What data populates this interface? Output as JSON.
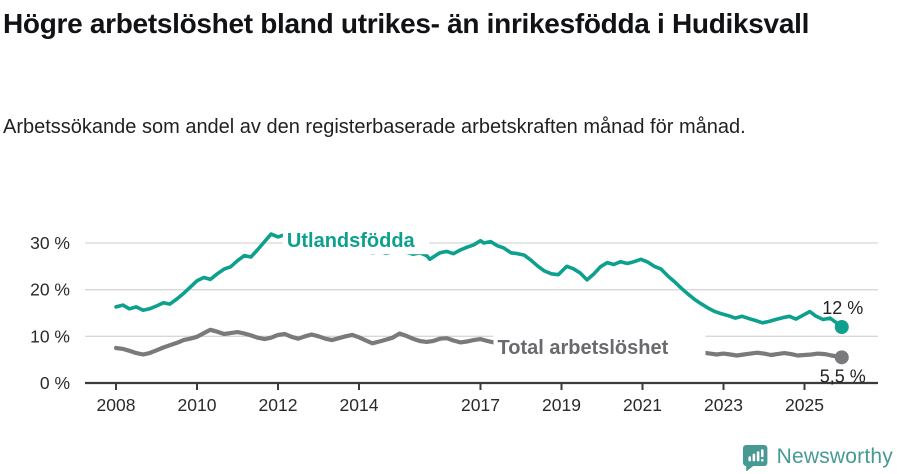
{
  "header": {
    "title": "Högre arbetslöshet bland utrikes- än inrikesfödda i Hudiksvall",
    "subtitle": "Arbetssökande som andel av den registerbaserade arbetskraften månad för månad."
  },
  "footer": {
    "brand": "Newsworthy"
  },
  "colors": {
    "series1": "#0da08d",
    "series2": "#7a7a7c",
    "series2_label": "#69696e",
    "grid": "#d8d8d8",
    "axis": "#3b3b3b",
    "text": "#2a2a2a",
    "title": "#111215",
    "brand": "#469a93"
  },
  "chart_data": {
    "type": "line",
    "title": "Högre arbetslöshet bland utrikes- än inrikesfödda i Hudiksvall",
    "subtitle": "Arbetssökande som andel av den registerbaserade arbetskraften månad för månad.",
    "x_axis": {
      "ticks": [
        2008,
        2010,
        2012,
        2014,
        2017,
        2019,
        2021,
        2023,
        2025
      ],
      "tick_labels": [
        "2008",
        "2010",
        "2012",
        "2014",
        "2017",
        "2019",
        "2021",
        "2023",
        "2025"
      ],
      "range": [
        2007.25,
        2026.8
      ]
    },
    "y_axis": {
      "ticks": [
        0,
        10,
        20,
        30
      ],
      "tick_labels": [
        "0 %",
        "10 %",
        "20 %",
        "30 %"
      ],
      "range": [
        0,
        36
      ],
      "unit": "%"
    },
    "grid": true,
    "legend_position": "inline-labels",
    "series": [
      {
        "name": "Utlandsfödda",
        "color": "#0da08d",
        "end_label": "12 %",
        "end_value": 12,
        "label_at": {
          "x": 2012.22,
          "y": 29.1
        },
        "points": [
          [
            2008.0,
            16.3
          ],
          [
            2008.17,
            16.7
          ],
          [
            2008.33,
            15.9
          ],
          [
            2008.5,
            16.3
          ],
          [
            2008.67,
            15.6
          ],
          [
            2008.83,
            15.9
          ],
          [
            2009.0,
            16.5
          ],
          [
            2009.17,
            17.2
          ],
          [
            2009.33,
            16.9
          ],
          [
            2009.5,
            18.0
          ],
          [
            2009.67,
            19.2
          ],
          [
            2009.83,
            20.5
          ],
          [
            2010.0,
            21.9
          ],
          [
            2010.17,
            22.6
          ],
          [
            2010.33,
            22.2
          ],
          [
            2010.5,
            23.4
          ],
          [
            2010.67,
            24.4
          ],
          [
            2010.83,
            24.9
          ],
          [
            2011.0,
            26.2
          ],
          [
            2011.17,
            27.3
          ],
          [
            2011.33,
            27.0
          ],
          [
            2011.5,
            28.6
          ],
          [
            2011.67,
            30.3
          ],
          [
            2011.83,
            31.9
          ],
          [
            2012.0,
            31.3
          ],
          [
            2012.17,
            31.8
          ],
          [
            2012.33,
            30.7
          ],
          [
            2012.5,
            30.2
          ],
          [
            2012.67,
            29.8
          ],
          [
            2012.83,
            29.4
          ],
          [
            2013.0,
            29.9
          ],
          [
            2013.17,
            29.4
          ],
          [
            2013.33,
            28.9
          ],
          [
            2013.5,
            28.5
          ],
          [
            2013.67,
            28.9
          ],
          [
            2013.83,
            28.4
          ],
          [
            2014.0,
            28.8
          ],
          [
            2014.17,
            28.3
          ],
          [
            2014.33,
            27.9
          ],
          [
            2014.5,
            28.2
          ],
          [
            2014.67,
            27.8
          ],
          [
            2014.83,
            28.1
          ],
          [
            2015.0,
            28.5
          ],
          [
            2015.17,
            28.0
          ],
          [
            2015.33,
            27.6
          ],
          [
            2015.5,
            27.9
          ],
          [
            2015.67,
            27.3
          ],
          [
            2015.75,
            26.5
          ],
          [
            2015.92,
            27.5
          ],
          [
            2016.0,
            27.9
          ],
          [
            2016.17,
            28.2
          ],
          [
            2016.33,
            27.7
          ],
          [
            2016.5,
            28.5
          ],
          [
            2016.67,
            29.1
          ],
          [
            2016.83,
            29.6
          ],
          [
            2017.0,
            30.5
          ],
          [
            2017.08,
            30.0
          ],
          [
            2017.25,
            30.3
          ],
          [
            2017.42,
            29.4
          ],
          [
            2017.58,
            28.9
          ],
          [
            2017.75,
            27.9
          ],
          [
            2017.92,
            27.7
          ],
          [
            2018.08,
            27.4
          ],
          [
            2018.25,
            26.3
          ],
          [
            2018.42,
            25.0
          ],
          [
            2018.58,
            24.0
          ],
          [
            2018.75,
            23.4
          ],
          [
            2018.92,
            23.2
          ],
          [
            2019.0,
            23.9
          ],
          [
            2019.13,
            25.0
          ],
          [
            2019.29,
            24.5
          ],
          [
            2019.46,
            23.6
          ],
          [
            2019.63,
            22.1
          ],
          [
            2019.79,
            23.3
          ],
          [
            2019.96,
            24.9
          ],
          [
            2020.13,
            25.8
          ],
          [
            2020.29,
            25.4
          ],
          [
            2020.46,
            26.0
          ],
          [
            2020.63,
            25.6
          ],
          [
            2020.79,
            26.0
          ],
          [
            2020.96,
            26.5
          ],
          [
            2021.13,
            25.9
          ],
          [
            2021.29,
            25.0
          ],
          [
            2021.46,
            24.4
          ],
          [
            2021.63,
            22.9
          ],
          [
            2021.79,
            21.7
          ],
          [
            2021.96,
            20.3
          ],
          [
            2022.13,
            19.0
          ],
          [
            2022.29,
            17.9
          ],
          [
            2022.46,
            16.9
          ],
          [
            2022.63,
            16.0
          ],
          [
            2022.79,
            15.3
          ],
          [
            2022.96,
            14.8
          ],
          [
            2023.13,
            14.4
          ],
          [
            2023.29,
            13.9
          ],
          [
            2023.46,
            14.3
          ],
          [
            2023.63,
            13.8
          ],
          [
            2023.79,
            13.4
          ],
          [
            2023.96,
            12.9
          ],
          [
            2024.13,
            13.2
          ],
          [
            2024.29,
            13.6
          ],
          [
            2024.46,
            14.0
          ],
          [
            2024.63,
            14.3
          ],
          [
            2024.79,
            13.7
          ],
          [
            2024.96,
            14.5
          ],
          [
            2025.13,
            15.3
          ],
          [
            2025.29,
            14.3
          ],
          [
            2025.46,
            13.6
          ],
          [
            2025.63,
            13.9
          ],
          [
            2025.79,
            12.9
          ],
          [
            2025.92,
            12.0
          ]
        ]
      },
      {
        "name": "Total arbetslöshet",
        "color": "#7a7a7c",
        "end_label": "5,5 %",
        "end_value": 5.5,
        "label_at": {
          "x": 2017.42,
          "y": 6.2
        },
        "points": [
          [
            2008.0,
            7.5
          ],
          [
            2008.17,
            7.3
          ],
          [
            2008.33,
            6.9
          ],
          [
            2008.5,
            6.4
          ],
          [
            2008.67,
            6.1
          ],
          [
            2008.83,
            6.4
          ],
          [
            2009.0,
            7.0
          ],
          [
            2009.17,
            7.6
          ],
          [
            2009.33,
            8.1
          ],
          [
            2009.5,
            8.6
          ],
          [
            2009.67,
            9.2
          ],
          [
            2009.83,
            9.5
          ],
          [
            2010.0,
            9.9
          ],
          [
            2010.17,
            10.7
          ],
          [
            2010.33,
            11.4
          ],
          [
            2010.5,
            11.0
          ],
          [
            2010.67,
            10.5
          ],
          [
            2010.83,
            10.7
          ],
          [
            2011.0,
            10.9
          ],
          [
            2011.17,
            10.6
          ],
          [
            2011.33,
            10.2
          ],
          [
            2011.5,
            9.7
          ],
          [
            2011.67,
            9.4
          ],
          [
            2011.83,
            9.7
          ],
          [
            2012.0,
            10.3
          ],
          [
            2012.17,
            10.5
          ],
          [
            2012.33,
            9.9
          ],
          [
            2012.5,
            9.5
          ],
          [
            2012.67,
            10.0
          ],
          [
            2012.83,
            10.4
          ],
          [
            2013.0,
            10.0
          ],
          [
            2013.17,
            9.5
          ],
          [
            2013.33,
            9.2
          ],
          [
            2013.5,
            9.6
          ],
          [
            2013.67,
            10.0
          ],
          [
            2013.83,
            10.3
          ],
          [
            2014.0,
            9.8
          ],
          [
            2014.17,
            9.1
          ],
          [
            2014.33,
            8.5
          ],
          [
            2014.5,
            8.9
          ],
          [
            2014.67,
            9.3
          ],
          [
            2014.83,
            9.7
          ],
          [
            2015.0,
            10.6
          ],
          [
            2015.17,
            10.1
          ],
          [
            2015.33,
            9.5
          ],
          [
            2015.5,
            9.0
          ],
          [
            2015.67,
            8.8
          ],
          [
            2015.83,
            9.0
          ],
          [
            2016.0,
            9.5
          ],
          [
            2016.17,
            9.6
          ],
          [
            2016.33,
            9.1
          ],
          [
            2016.5,
            8.7
          ],
          [
            2016.67,
            8.9
          ],
          [
            2016.83,
            9.2
          ],
          [
            2017.0,
            9.4
          ],
          [
            2017.17,
            9.0
          ],
          [
            2017.33,
            8.7
          ],
          [
            2017.5,
            8.6
          ],
          [
            2017.67,
            8.4
          ],
          [
            2017.83,
            8.3
          ],
          [
            2018.0,
            8.5
          ],
          [
            2018.33,
            8.1
          ],
          [
            2018.67,
            7.8
          ],
          [
            2019.0,
            8.0
          ],
          [
            2019.33,
            7.7
          ],
          [
            2019.67,
            7.5
          ],
          [
            2020.0,
            8.0
          ],
          [
            2020.33,
            8.6
          ],
          [
            2020.67,
            8.3
          ],
          [
            2021.0,
            8.2
          ],
          [
            2021.33,
            7.8
          ],
          [
            2021.67,
            7.4
          ],
          [
            2022.0,
            7.2
          ],
          [
            2022.17,
            7.0
          ],
          [
            2022.33,
            6.8
          ],
          [
            2022.5,
            6.5
          ],
          [
            2022.67,
            6.3
          ],
          [
            2022.83,
            6.1
          ],
          [
            2023.0,
            6.3
          ],
          [
            2023.17,
            6.1
          ],
          [
            2023.33,
            5.9
          ],
          [
            2023.5,
            6.1
          ],
          [
            2023.67,
            6.3
          ],
          [
            2023.83,
            6.5
          ],
          [
            2024.0,
            6.3
          ],
          [
            2024.17,
            6.0
          ],
          [
            2024.33,
            6.2
          ],
          [
            2024.5,
            6.4
          ],
          [
            2024.67,
            6.2
          ],
          [
            2024.83,
            5.9
          ],
          [
            2025.0,
            6.0
          ],
          [
            2025.17,
            6.1
          ],
          [
            2025.33,
            6.3
          ],
          [
            2025.5,
            6.2
          ],
          [
            2025.67,
            5.9
          ],
          [
            2025.92,
            5.5
          ]
        ]
      }
    ]
  }
}
